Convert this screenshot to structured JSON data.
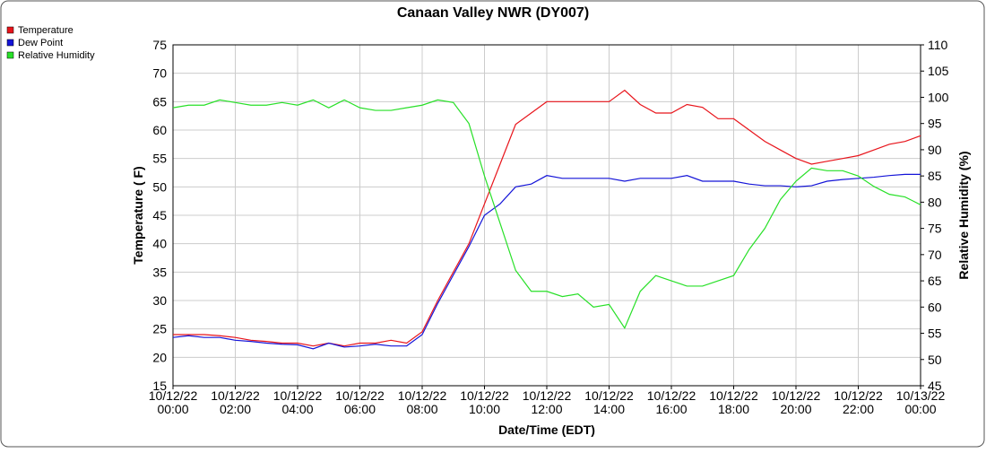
{
  "chart_data": {
    "type": "line",
    "title": "Canaan Valley NWR (DY007)",
    "xlabel": "Date/Time (EDT)",
    "ylabel": "Temperature ( F)",
    "y2label": "Relative Humidity (%)",
    "x": [
      0,
      0.5,
      1,
      1.5,
      2,
      2.5,
      3,
      3.5,
      4,
      4.5,
      5,
      5.5,
      6,
      6.5,
      7,
      7.5,
      8,
      8.5,
      9,
      9.5,
      10,
      10.5,
      11,
      11.5,
      12,
      12.5,
      13,
      13.5,
      14,
      14.5,
      15,
      15.5,
      16,
      16.5,
      17,
      17.5,
      18,
      18.5,
      19,
      19.5,
      20,
      20.5,
      21,
      21.5,
      22,
      22.5,
      23,
      23.5,
      24
    ],
    "xlim": [
      0,
      24
    ],
    "xticks": [
      {
        "value": 0,
        "label": "10/12/22 00:00"
      },
      {
        "value": 2,
        "label": "10/12/22 02:00"
      },
      {
        "value": 4,
        "label": "10/12/22 04:00"
      },
      {
        "value": 6,
        "label": "10/12/22 06:00"
      },
      {
        "value": 8,
        "label": "10/12/22 08:00"
      },
      {
        "value": 10,
        "label": "10/12/22 10:00"
      },
      {
        "value": 12,
        "label": "10/12/22 12:00"
      },
      {
        "value": 14,
        "label": "10/12/22 14:00"
      },
      {
        "value": 16,
        "label": "10/12/22 16:00"
      },
      {
        "value": 18,
        "label": "10/12/22 18:00"
      },
      {
        "value": 20,
        "label": "10/12/22 20:00"
      },
      {
        "value": 22,
        "label": "10/12/22 22:00"
      },
      {
        "value": 24,
        "label": "10/13/22 00:00"
      }
    ],
    "ylim": [
      15,
      75
    ],
    "yticks": [
      15,
      20,
      25,
      30,
      35,
      40,
      45,
      50,
      55,
      60,
      65,
      70,
      75
    ],
    "y2lim": [
      45,
      110
    ],
    "y2ticks": [
      45,
      50,
      55,
      60,
      65,
      70,
      75,
      80,
      85,
      90,
      95,
      100,
      105,
      110
    ],
    "grid": true,
    "legend": "top-left",
    "series": [
      {
        "name": "Temperature",
        "color": "#e8141b",
        "values": [
          24,
          24,
          24,
          23.8,
          23.5,
          23,
          22.8,
          22.5,
          22.5,
          22,
          22.5,
          22,
          22.5,
          22.5,
          23,
          22.5,
          24.5,
          30,
          35,
          40,
          47,
          54,
          61,
          63,
          65,
          65,
          65,
          65,
          65,
          67,
          64.5,
          63,
          63,
          64.5,
          64,
          62,
          62,
          60,
          58,
          56.5,
          55,
          54,
          54.5,
          55,
          55.5,
          56.5,
          57.5,
          58,
          59
        ]
      },
      {
        "name": "Dew Point",
        "color": "#1414d8",
        "values": [
          23.5,
          23.8,
          23.5,
          23.5,
          23,
          22.8,
          22.5,
          22.3,
          22.2,
          21.5,
          22.5,
          21.8,
          22,
          22.3,
          22,
          22,
          24,
          29.5,
          34.5,
          39.5,
          45,
          47,
          50,
          50.5,
          52,
          51.5,
          51.5,
          51.5,
          51.5,
          51,
          51.5,
          51.5,
          51.5,
          52,
          51,
          51,
          51,
          50.5,
          50.2,
          50.2,
          50,
          50.2,
          51,
          51.3,
          51.5,
          51.7,
          52,
          52.2,
          52.2
        ]
      },
      {
        "name": "Relative Humidity",
        "color": "#28e028",
        "axis": "y2",
        "values": [
          98,
          98.5,
          98.5,
          99.5,
          99,
          98.5,
          98.5,
          99,
          98.5,
          99.5,
          98,
          99.5,
          98,
          97.5,
          97.5,
          98,
          98.5,
          99.5,
          99,
          95,
          85,
          76,
          67,
          63,
          63,
          62,
          62.5,
          60,
          60.5,
          56,
          63,
          66,
          65,
          64,
          64,
          65,
          66,
          71,
          75,
          80.5,
          84,
          86.5,
          86,
          86,
          85,
          83,
          81.5,
          81,
          79.5
        ]
      }
    ]
  }
}
